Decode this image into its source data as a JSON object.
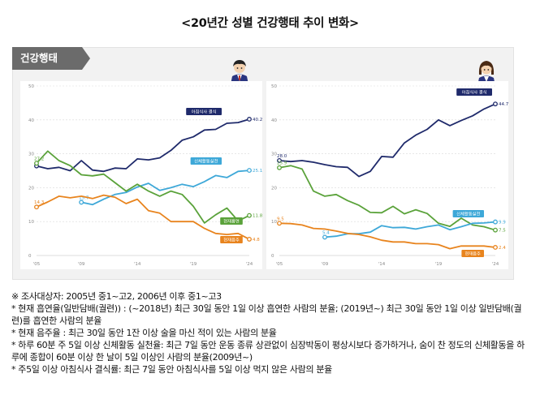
{
  "page_title": "<20년간 성별 건강행태 추이 변화>",
  "panel_tag": "건강행태",
  "colors": {
    "smoking": "#5aa23a",
    "drinking": "#3ea8d8",
    "activity": "#e8841e",
    "skip_breakfast": "#1f2a6b",
    "panel_bg": "#f2f2f2",
    "tag_bg": "#6b6b6b"
  },
  "chart_data": [
    {
      "type": "line",
      "id": "male",
      "ylim": [
        0,
        50
      ],
      "yticks": [
        0,
        10,
        20,
        30,
        40,
        50
      ],
      "xlim": [
        2005,
        2024
      ],
      "xticks": [
        2005,
        2009,
        2014,
        2019,
        2024
      ],
      "xtick_labels": [
        "'05",
        "'09",
        "'14",
        "'19",
        "'24"
      ],
      "series": [
        {
          "name": "아침식사 결식",
          "color_key": "skip_breakfast",
          "x": [
            2005,
            2006,
            2007,
            2008,
            2009,
            2010,
            2011,
            2012,
            2013,
            2014,
            2015,
            2016,
            2017,
            2018,
            2019,
            2020,
            2021,
            2022,
            2023,
            2024
          ],
          "y": [
            26.4,
            25.6,
            26.0,
            25.0,
            28.0,
            25.2,
            24.8,
            25.8,
            25.6,
            28.5,
            28.2,
            28.8,
            31.0,
            34.0,
            35.0,
            37.0,
            37.2,
            39.0,
            39.2,
            40.2
          ],
          "end_value": "40.2",
          "start_value": ""
        },
        {
          "name": "신체활동실천",
          "color_key": "drinking",
          "x": [
            2009,
            2010,
            2011,
            2012,
            2013,
            2014,
            2015,
            2016,
            2017,
            2018,
            2019,
            2020,
            2021,
            2022,
            2023,
            2024
          ],
          "y": [
            15.7,
            15.0,
            16.6,
            18.0,
            18.6,
            20.2,
            21.3,
            19.2,
            20.0,
            21.0,
            20.3,
            21.8,
            23.6,
            23.0,
            24.8,
            25.1
          ],
          "end_value": "25.1",
          "start_value": "15.7"
        },
        {
          "name": "현재흡연",
          "color_key": "smoking",
          "x": [
            2005,
            2006,
            2007,
            2008,
            2009,
            2010,
            2011,
            2012,
            2013,
            2014,
            2015,
            2016,
            2017,
            2018,
            2019,
            2020,
            2021,
            2022,
            2023,
            2024
          ],
          "y": [
            27.2,
            30.8,
            28.0,
            26.5,
            23.8,
            23.5,
            24.0,
            21.5,
            19.0,
            21.0,
            19.0,
            17.5,
            19.0,
            18.0,
            14.5,
            9.6,
            12.0,
            14.0,
            10.2,
            11.8
          ],
          "end_value": "11.8",
          "start_value": "27.2"
        },
        {
          "name": "현재음주",
          "color_key": "activity",
          "x": [
            2005,
            2006,
            2007,
            2008,
            2009,
            2010,
            2011,
            2012,
            2013,
            2014,
            2015,
            2016,
            2017,
            2018,
            2019,
            2020,
            2021,
            2022,
            2023,
            2024
          ],
          "y": [
            14.3,
            15.8,
            17.5,
            17.0,
            17.5,
            16.8,
            17.8,
            17.2,
            15.3,
            16.6,
            13.2,
            12.5,
            10.0,
            10.0,
            10.0,
            8.0,
            6.5,
            6.2,
            6.5,
            4.8
          ],
          "end_value": "4.8",
          "start_value": "14.3"
        }
      ],
      "labels": {
        "skip_breakfast": "아침식사 결식",
        "activity_practice": "신체활동실천",
        "drinking": "현재음주",
        "smoking": "현재흡연"
      }
    },
    {
      "type": "line",
      "id": "female",
      "ylim": [
        0,
        50
      ],
      "yticks": [
        0,
        10,
        20,
        30,
        40,
        50
      ],
      "xlim": [
        2005,
        2024
      ],
      "xticks": [
        2005,
        2009,
        2014,
        2019,
        2024
      ],
      "xtick_labels": [
        "'05",
        "'09",
        "'14",
        "'19",
        "'24"
      ],
      "series": [
        {
          "name": "아침식사 결식",
          "color_key": "skip_breakfast",
          "x": [
            2005,
            2006,
            2007,
            2008,
            2009,
            2010,
            2011,
            2012,
            2013,
            2014,
            2015,
            2016,
            2017,
            2018,
            2019,
            2020,
            2021,
            2022,
            2023,
            2024
          ],
          "y": [
            28.0,
            27.7,
            28.0,
            27.5,
            26.8,
            26.2,
            26.0,
            23.3,
            24.8,
            29.2,
            29.0,
            33.2,
            35.5,
            37.2,
            40.0,
            38.3,
            39.8,
            41.2,
            43.2,
            44.7
          ],
          "end_value": "44.7",
          "start_value": "28.0"
        },
        {
          "name": "현재흡연",
          "color_key": "smoking",
          "x": [
            2005,
            2006,
            2007,
            2008,
            2009,
            2010,
            2011,
            2012,
            2013,
            2014,
            2015,
            2016,
            2017,
            2018,
            2019,
            2020,
            2021,
            2022,
            2023,
            2024
          ],
          "y": [
            25.9,
            26.5,
            25.5,
            19.0,
            17.5,
            18.0,
            16.2,
            14.8,
            12.7,
            12.6,
            14.5,
            12.3,
            13.5,
            12.4,
            9.5,
            8.6,
            11.0,
            9.0,
            8.5,
            7.5
          ],
          "end_value": "7.5",
          "start_value": "25.9"
        },
        {
          "name": "신체활동실천",
          "color_key": "drinking",
          "x": [
            2009,
            2010,
            2011,
            2012,
            2013,
            2014,
            2015,
            2016,
            2017,
            2018,
            2019,
            2020,
            2021,
            2022,
            2023,
            2024
          ],
          "y": [
            5.4,
            5.7,
            6.4,
            6.4,
            6.9,
            8.8,
            8.2,
            8.3,
            7.8,
            8.5,
            9.0,
            7.6,
            8.5,
            9.5,
            9.6,
            9.9
          ],
          "end_value": "9.9",
          "start_value": "5.4"
        },
        {
          "name": "현재음주",
          "color_key": "activity",
          "x": [
            2005,
            2006,
            2007,
            2008,
            2009,
            2010,
            2011,
            2012,
            2013,
            2014,
            2015,
            2016,
            2017,
            2018,
            2019,
            2020,
            2021,
            2022,
            2023,
            2024
          ],
          "y": [
            9.5,
            9.4,
            9.0,
            8.0,
            7.8,
            7.2,
            6.5,
            6.2,
            5.5,
            4.5,
            4.0,
            4.0,
            3.5,
            3.5,
            3.2,
            2.0,
            2.8,
            2.8,
            2.8,
            2.4
          ],
          "end_value": "2.4",
          "start_value": "9.5"
        }
      ],
      "labels": {
        "skip_breakfast": "아침식사 결식",
        "activity_practice": "신체활동실천",
        "drinking": "현재음주"
      }
    }
  ],
  "notes": [
    "※ 조사대상자: 2005년 중1~고2, 2006년 이후 중1~고3",
    "* 현재 흡연율(일반담배(궐련)) : (~2018년) 최근 30일 동안 1일 이상 흡연한 사람의 분율; (2019년~) 최근 30일 동안 1일 이상 일반담배(궐련)를 흡연한 사람의 분율",
    "* 현재 음주율 : 최근 30일 동안 1잔 이상 술을 마신 적이 있는 사람의 분율",
    "* 하루 60분 주 5일 이상 신체활동 실천율: 최근 7일 동안 운동 종류 상관없이 심장박동이 평상시보다 증가하거나, 숨이 찬 정도의 신체활동을 하루에 종합이 60분 이상 한 날이 5일 이상인 사람의 분율(2009년~)",
    "* 주5일 이상 아침식사 결식률: 최근 7일 동안 아침식사를 5일 이상 먹지 않은 사람의 분율"
  ]
}
